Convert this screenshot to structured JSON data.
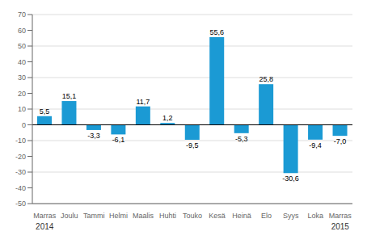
{
  "chart_data": {
    "type": "bar",
    "categories": [
      "Marras",
      "Joulu",
      "Tammi",
      "Helmi",
      "Maalis",
      "Huhti",
      "Touko",
      "Kesä",
      "Heinä",
      "Elo",
      "Syys",
      "Loka",
      "Marras"
    ],
    "values": [
      5.5,
      15.1,
      -3.3,
      -6.1,
      11.7,
      1.2,
      -9.5,
      55.6,
      -5.3,
      25.8,
      -30.6,
      -9.4,
      -7.0
    ],
    "value_labels": [
      "5,5",
      "15,1",
      "-3,3",
      "-6,1",
      "11,7",
      "1,2",
      "-9,5",
      "55,6",
      "-5,3",
      "25,8",
      "-30,6",
      "-9,4",
      "-7,0"
    ],
    "color": "#1b9ad4",
    "ylim": [
      -50,
      70
    ],
    "yticks": [
      -50,
      -40,
      -30,
      -20,
      -10,
      0,
      10,
      20,
      30,
      40,
      50,
      60,
      70
    ],
    "grid": true,
    "data_labels": true,
    "annotations": [
      "2014",
      "2015"
    ]
  }
}
